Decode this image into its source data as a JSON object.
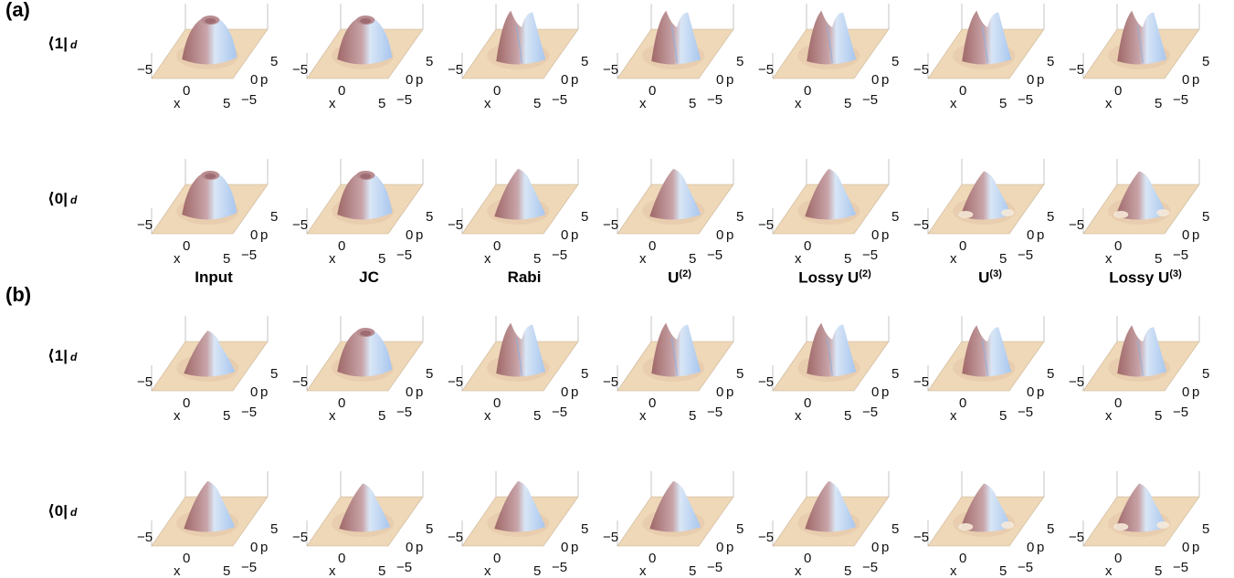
{
  "panels": [
    {
      "label": "(a)",
      "rows": [
        {
          "label": "⟨1|",
          "sub": "d",
          "cells": [
            {
              "shape": "ring",
              "peaks": 1,
              "height": 0.75
            },
            {
              "shape": "ring",
              "peaks": 1,
              "height": 0.75
            },
            {
              "shape": "double",
              "peaks": 2,
              "height": 0.95
            },
            {
              "shape": "double",
              "peaks": 2,
              "height": 0.95
            },
            {
              "shape": "double",
              "peaks": 2,
              "height": 0.95
            },
            {
              "shape": "double",
              "peaks": 2,
              "height": 0.95
            },
            {
              "shape": "double",
              "peaks": 2,
              "height": 0.95
            }
          ]
        },
        {
          "label": "⟨0|",
          "sub": "d",
          "cells": [
            {
              "shape": "ring",
              "peaks": 1,
              "height": 0.75
            },
            {
              "shape": "ring",
              "peaks": 1,
              "height": 0.75
            },
            {
              "shape": "single",
              "peaks": 1,
              "height": 0.85
            },
            {
              "shape": "single",
              "peaks": 1,
              "height": 0.85
            },
            {
              "shape": "single",
              "peaks": 1,
              "height": 0.85
            },
            {
              "shape": "single-dip",
              "peaks": 1,
              "height": 0.8
            },
            {
              "shape": "single-dip",
              "peaks": 1,
              "height": 0.8
            }
          ]
        }
      ]
    },
    {
      "label": "(b)",
      "rows": [
        {
          "label": "⟨1|",
          "sub": "d",
          "cells": [
            {
              "shape": "single",
              "peaks": 1,
              "height": 0.75
            },
            {
              "shape": "ring",
              "peaks": 1,
              "height": 0.75
            },
            {
              "shape": "double",
              "peaks": 2,
              "height": 0.95
            },
            {
              "shape": "double",
              "peaks": 2,
              "height": 0.95
            },
            {
              "shape": "double",
              "peaks": 2,
              "height": 0.95
            },
            {
              "shape": "double",
              "peaks": 2,
              "height": 0.9
            },
            {
              "shape": "double",
              "peaks": 2,
              "height": 0.9
            }
          ]
        },
        {
          "label": "⟨0|",
          "sub": "d",
          "cells": [
            {
              "shape": "single",
              "peaks": 1,
              "height": 0.85
            },
            {
              "shape": "single",
              "peaks": 1,
              "height": 0.8
            },
            {
              "shape": "single",
              "peaks": 1,
              "height": 0.85
            },
            {
              "shape": "single",
              "peaks": 1,
              "height": 0.85
            },
            {
              "shape": "single",
              "peaks": 1,
              "height": 0.85
            },
            {
              "shape": "single-dip",
              "peaks": 1,
              "height": 0.8
            },
            {
              "shape": "single-dip",
              "peaks": 1,
              "height": 0.8
            }
          ]
        }
      ]
    }
  ],
  "columns": [
    {
      "title": "Input",
      "sup": ""
    },
    {
      "title": "JC",
      "sup": ""
    },
    {
      "title": "Rabi",
      "sup": ""
    },
    {
      "title": "U",
      "sup": "(2)"
    },
    {
      "title": "Lossy U",
      "sup": "(2)"
    },
    {
      "title": "U",
      "sup": "(3)"
    },
    {
      "title": "Lossy U",
      "sup": "(3)"
    }
  ],
  "axes": {
    "x_label": "x",
    "p_label": "p",
    "tick_min": "−5",
    "tick_zero": "0",
    "tick_max": "5"
  },
  "colors": {
    "floor": "#eed8b8",
    "peak_light": "#d8e6f6",
    "peak_blue": "#a8c6ee",
    "shadow_red": "#a06868",
    "box": "#b8b8b8"
  }
}
